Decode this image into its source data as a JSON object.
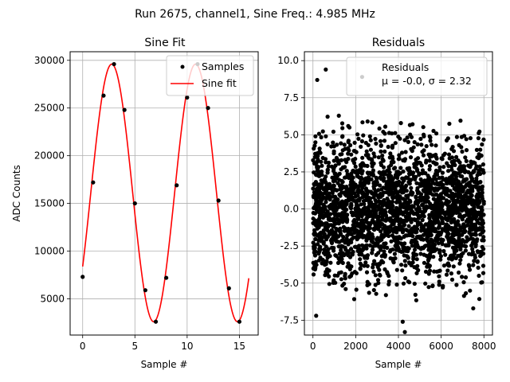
{
  "figure": {
    "suptitle": "Run 2675, channel1, Sine Freq.: 4.985 MHz"
  },
  "chart_data": [
    {
      "type": "scatter+line",
      "title": "Sine Fit",
      "xlabel": "Sample #",
      "ylabel": "ADC Counts",
      "xlim": [
        -1.2,
        16.8
      ],
      "ylim": [
        1200,
        30900
      ],
      "xticks": [
        0,
        5,
        10,
        15
      ],
      "yticks": [
        5000,
        10000,
        15000,
        20000,
        25000,
        30000
      ],
      "grid": true,
      "legend": {
        "position": "top-right",
        "entries": [
          "Samples",
          "Sine fit"
        ]
      },
      "series": [
        {
          "name": "Samples",
          "style": "markers",
          "color": "#000000",
          "x": [
            0,
            1,
            2,
            3,
            4,
            5,
            6,
            7,
            8,
            9,
            10,
            11,
            12,
            13,
            14,
            15
          ],
          "y": [
            7300,
            17200,
            26300,
            29600,
            24800,
            15000,
            5900,
            2600,
            7200,
            16900,
            26100,
            29600,
            25000,
            15300,
            6100,
            2600
          ]
        },
        {
          "name": "Sine fit",
          "style": "line",
          "color": "#ff0000",
          "model": {
            "form": "offset + amplitude*sin(omega*x + phase)",
            "offset": 16100,
            "amplitude": 13500,
            "omega": 0.783,
            "phase": -0.608
          },
          "x_range": [
            0,
            15.9
          ]
        }
      ]
    },
    {
      "type": "scatter",
      "title": "Residuals",
      "xlabel": "Sample #",
      "ylabel": "",
      "xlim": [
        -400,
        8400
      ],
      "ylim": [
        -8.5,
        10.6
      ],
      "xticks": [
        0,
        2000,
        4000,
        6000,
        8000
      ],
      "yticks": [
        -7.5,
        -5.0,
        -2.5,
        0.0,
        2.5,
        5.0,
        7.5,
        10.0
      ],
      "grid": true,
      "legend": {
        "position": "top-right",
        "entries": [
          "Residuals",
          "μ = -0.0, σ = 2.32"
        ]
      },
      "series": [
        {
          "name": "Residuals",
          "style": "markers",
          "color": "#000000",
          "n_points": 8000,
          "x_range": [
            0,
            8000
          ],
          "mean": -0.0,
          "std": 2.32,
          "min": -8.3,
          "max": 9.4,
          "notable_points": [
            {
              "x": 200,
              "y": 8.7
            },
            {
              "x": 600,
              "y": 9.4
            },
            {
              "x": 2300,
              "y": 8.9
            },
            {
              "x": 4300,
              "y": -8.3
            },
            {
              "x": 150,
              "y": -7.2
            },
            {
              "x": 7500,
              "y": -6.7
            },
            {
              "x": 4200,
              "y": -7.6
            }
          ]
        }
      ]
    }
  ]
}
